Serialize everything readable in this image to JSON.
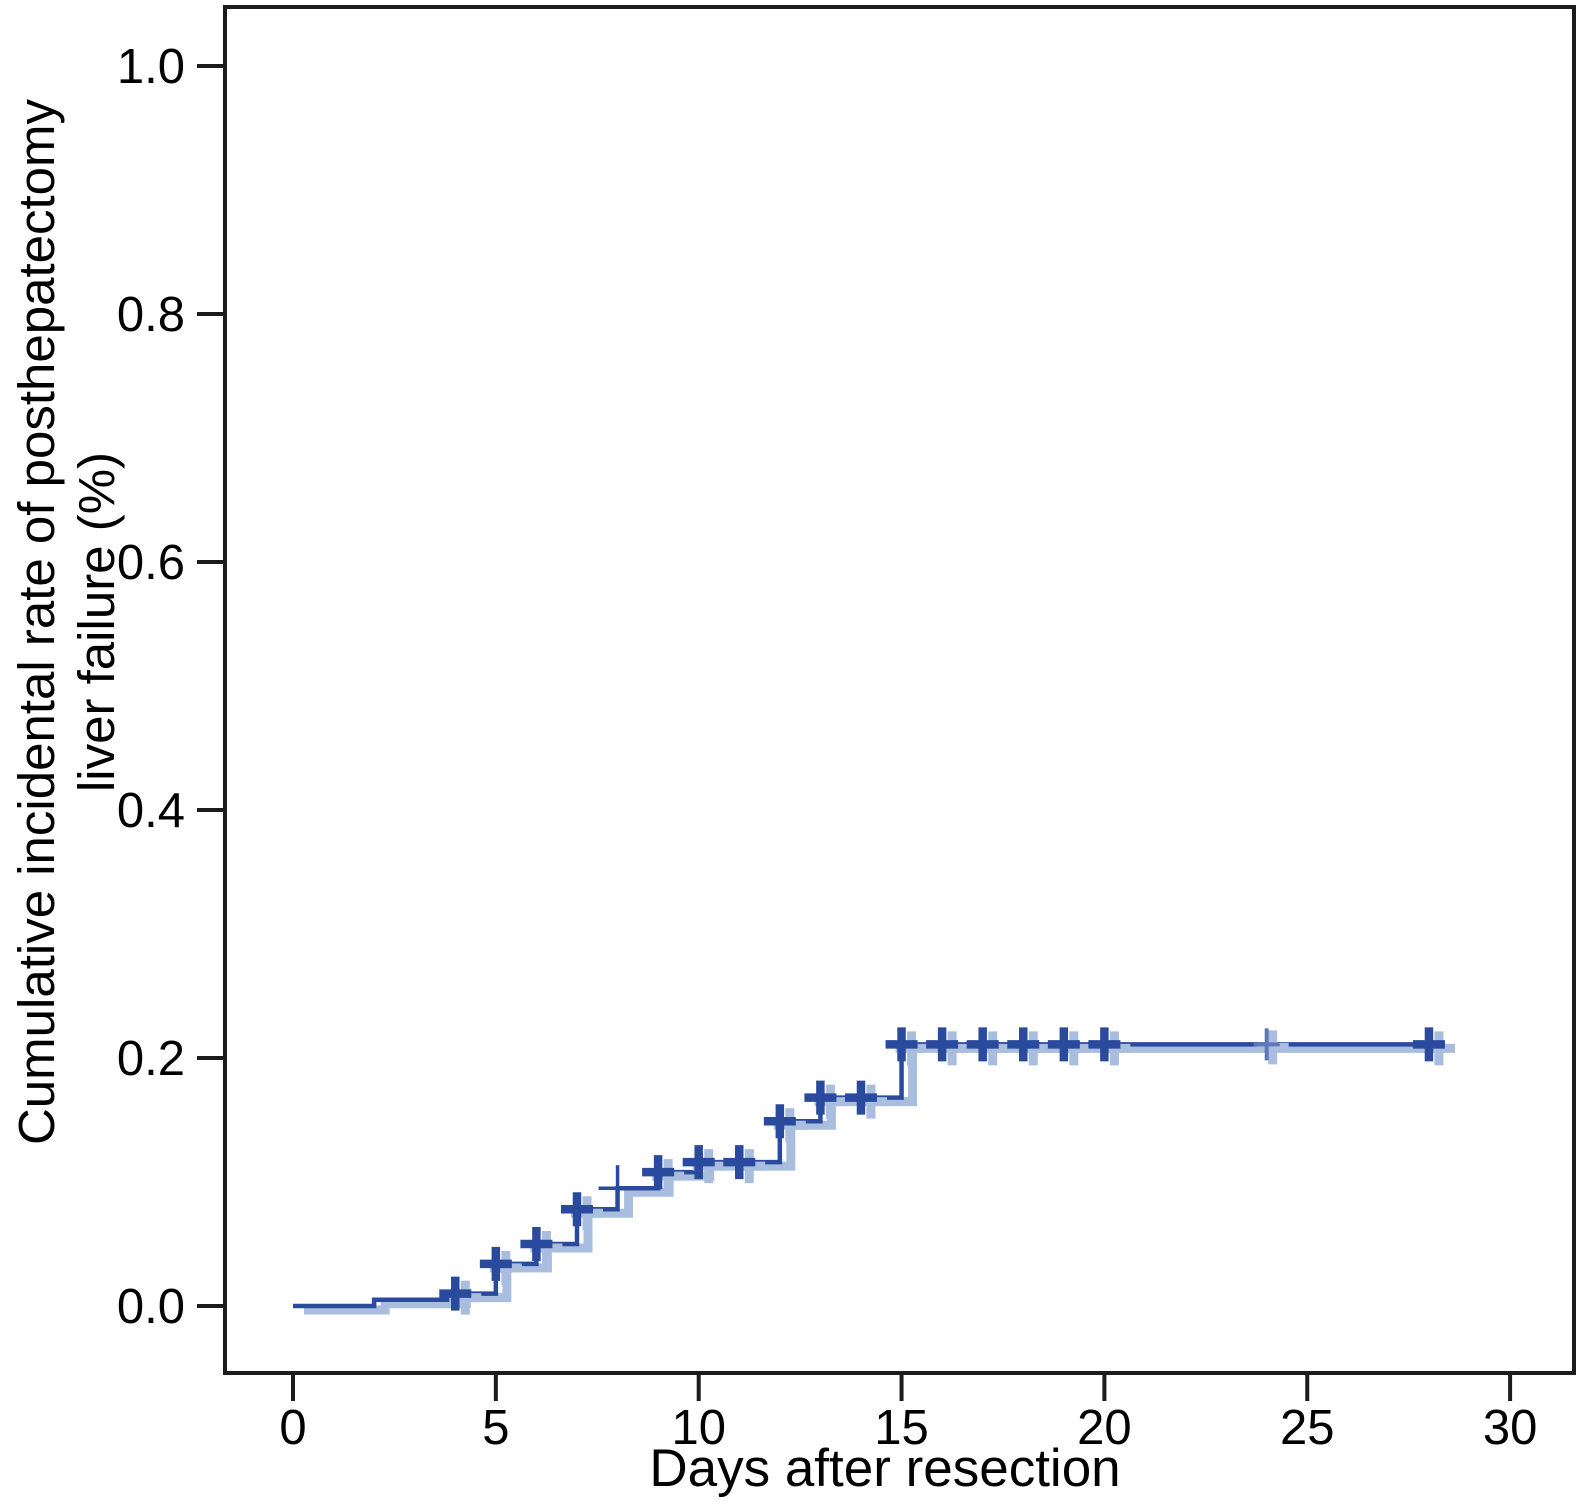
{
  "figure": {
    "x_axis_label": "Days after resection",
    "y_axis_label_line1": "Cumulative incidental rate of posthepatectomy",
    "y_axis_label_line2": "liver failure (%)"
  },
  "chart_data": {
    "type": "line",
    "subtype": "kaplan-meier-cumulative-incidence-step",
    "title": "",
    "xlabel": "Days after resection",
    "ylabel": "Cumulative incidental rate of posthepatectomy liver failure (%)",
    "xlim": [
      -1.7,
      31.6
    ],
    "ylim": [
      -0.054,
      1.048
    ],
    "xticks": [
      0,
      5,
      10,
      15,
      20,
      25,
      30
    ],
    "yticks": [
      0.0,
      0.2,
      0.4,
      0.6,
      0.8,
      1.0
    ],
    "ytick_labels": [
      "0.0",
      "0.2",
      "0.4",
      "0.6",
      "0.8",
      "1.0"
    ],
    "grid": false,
    "legend_position": "none",
    "frame": "full-box",
    "series": [
      {
        "name": "Cumulative incidence of posthepatectomy liver failure",
        "color": "#2a4a9d",
        "halo_color": "#a9bdde",
        "step_points": [
          [
            0,
            0.0
          ],
          [
            2,
            0.005
          ],
          [
            4,
            0.01
          ],
          [
            5,
            0.034
          ],
          [
            6,
            0.05
          ],
          [
            7,
            0.078
          ],
          [
            8,
            0.095
          ],
          [
            9,
            0.108
          ],
          [
            10,
            0.116
          ],
          [
            12,
            0.149
          ],
          [
            13,
            0.168
          ],
          [
            15,
            0.211
          ]
        ],
        "end_day": 28.15,
        "plateau_value": 0.211
      }
    ],
    "censor_marks": [
      {
        "day": 4,
        "value": 0.01,
        "style": "thick"
      },
      {
        "day": 5,
        "value": 0.034,
        "style": "thick"
      },
      {
        "day": 6,
        "value": 0.05,
        "style": "thick"
      },
      {
        "day": 7,
        "value": 0.078,
        "style": "thick"
      },
      {
        "day": 8,
        "value": 0.095,
        "style": "thin"
      },
      {
        "day": 9,
        "value": 0.108,
        "style": "thick"
      },
      {
        "day": 10,
        "value": 0.116,
        "style": "thick"
      },
      {
        "day": 11,
        "value": 0.116,
        "style": "thick"
      },
      {
        "day": 12,
        "value": 0.149,
        "style": "thick"
      },
      {
        "day": 13,
        "value": 0.168,
        "style": "thick"
      },
      {
        "day": 14,
        "value": 0.168,
        "style": "thick"
      },
      {
        "day": 15,
        "value": 0.211,
        "style": "thick"
      },
      {
        "day": 16,
        "value": 0.211,
        "style": "thick"
      },
      {
        "day": 17,
        "value": 0.211,
        "style": "thick"
      },
      {
        "day": 18,
        "value": 0.211,
        "style": "thick"
      },
      {
        "day": 19,
        "value": 0.211,
        "style": "thick"
      },
      {
        "day": 20,
        "value": 0.211,
        "style": "thick"
      },
      {
        "day": 24,
        "value": 0.211,
        "style": "light"
      },
      {
        "day": 28,
        "value": 0.211,
        "style": "thick"
      }
    ]
  },
  "colors": {
    "curve_dark": "#2a4a9d",
    "curve_light": "#a9bdde",
    "axis": "#1c1c1c",
    "background": "#ffffff"
  }
}
